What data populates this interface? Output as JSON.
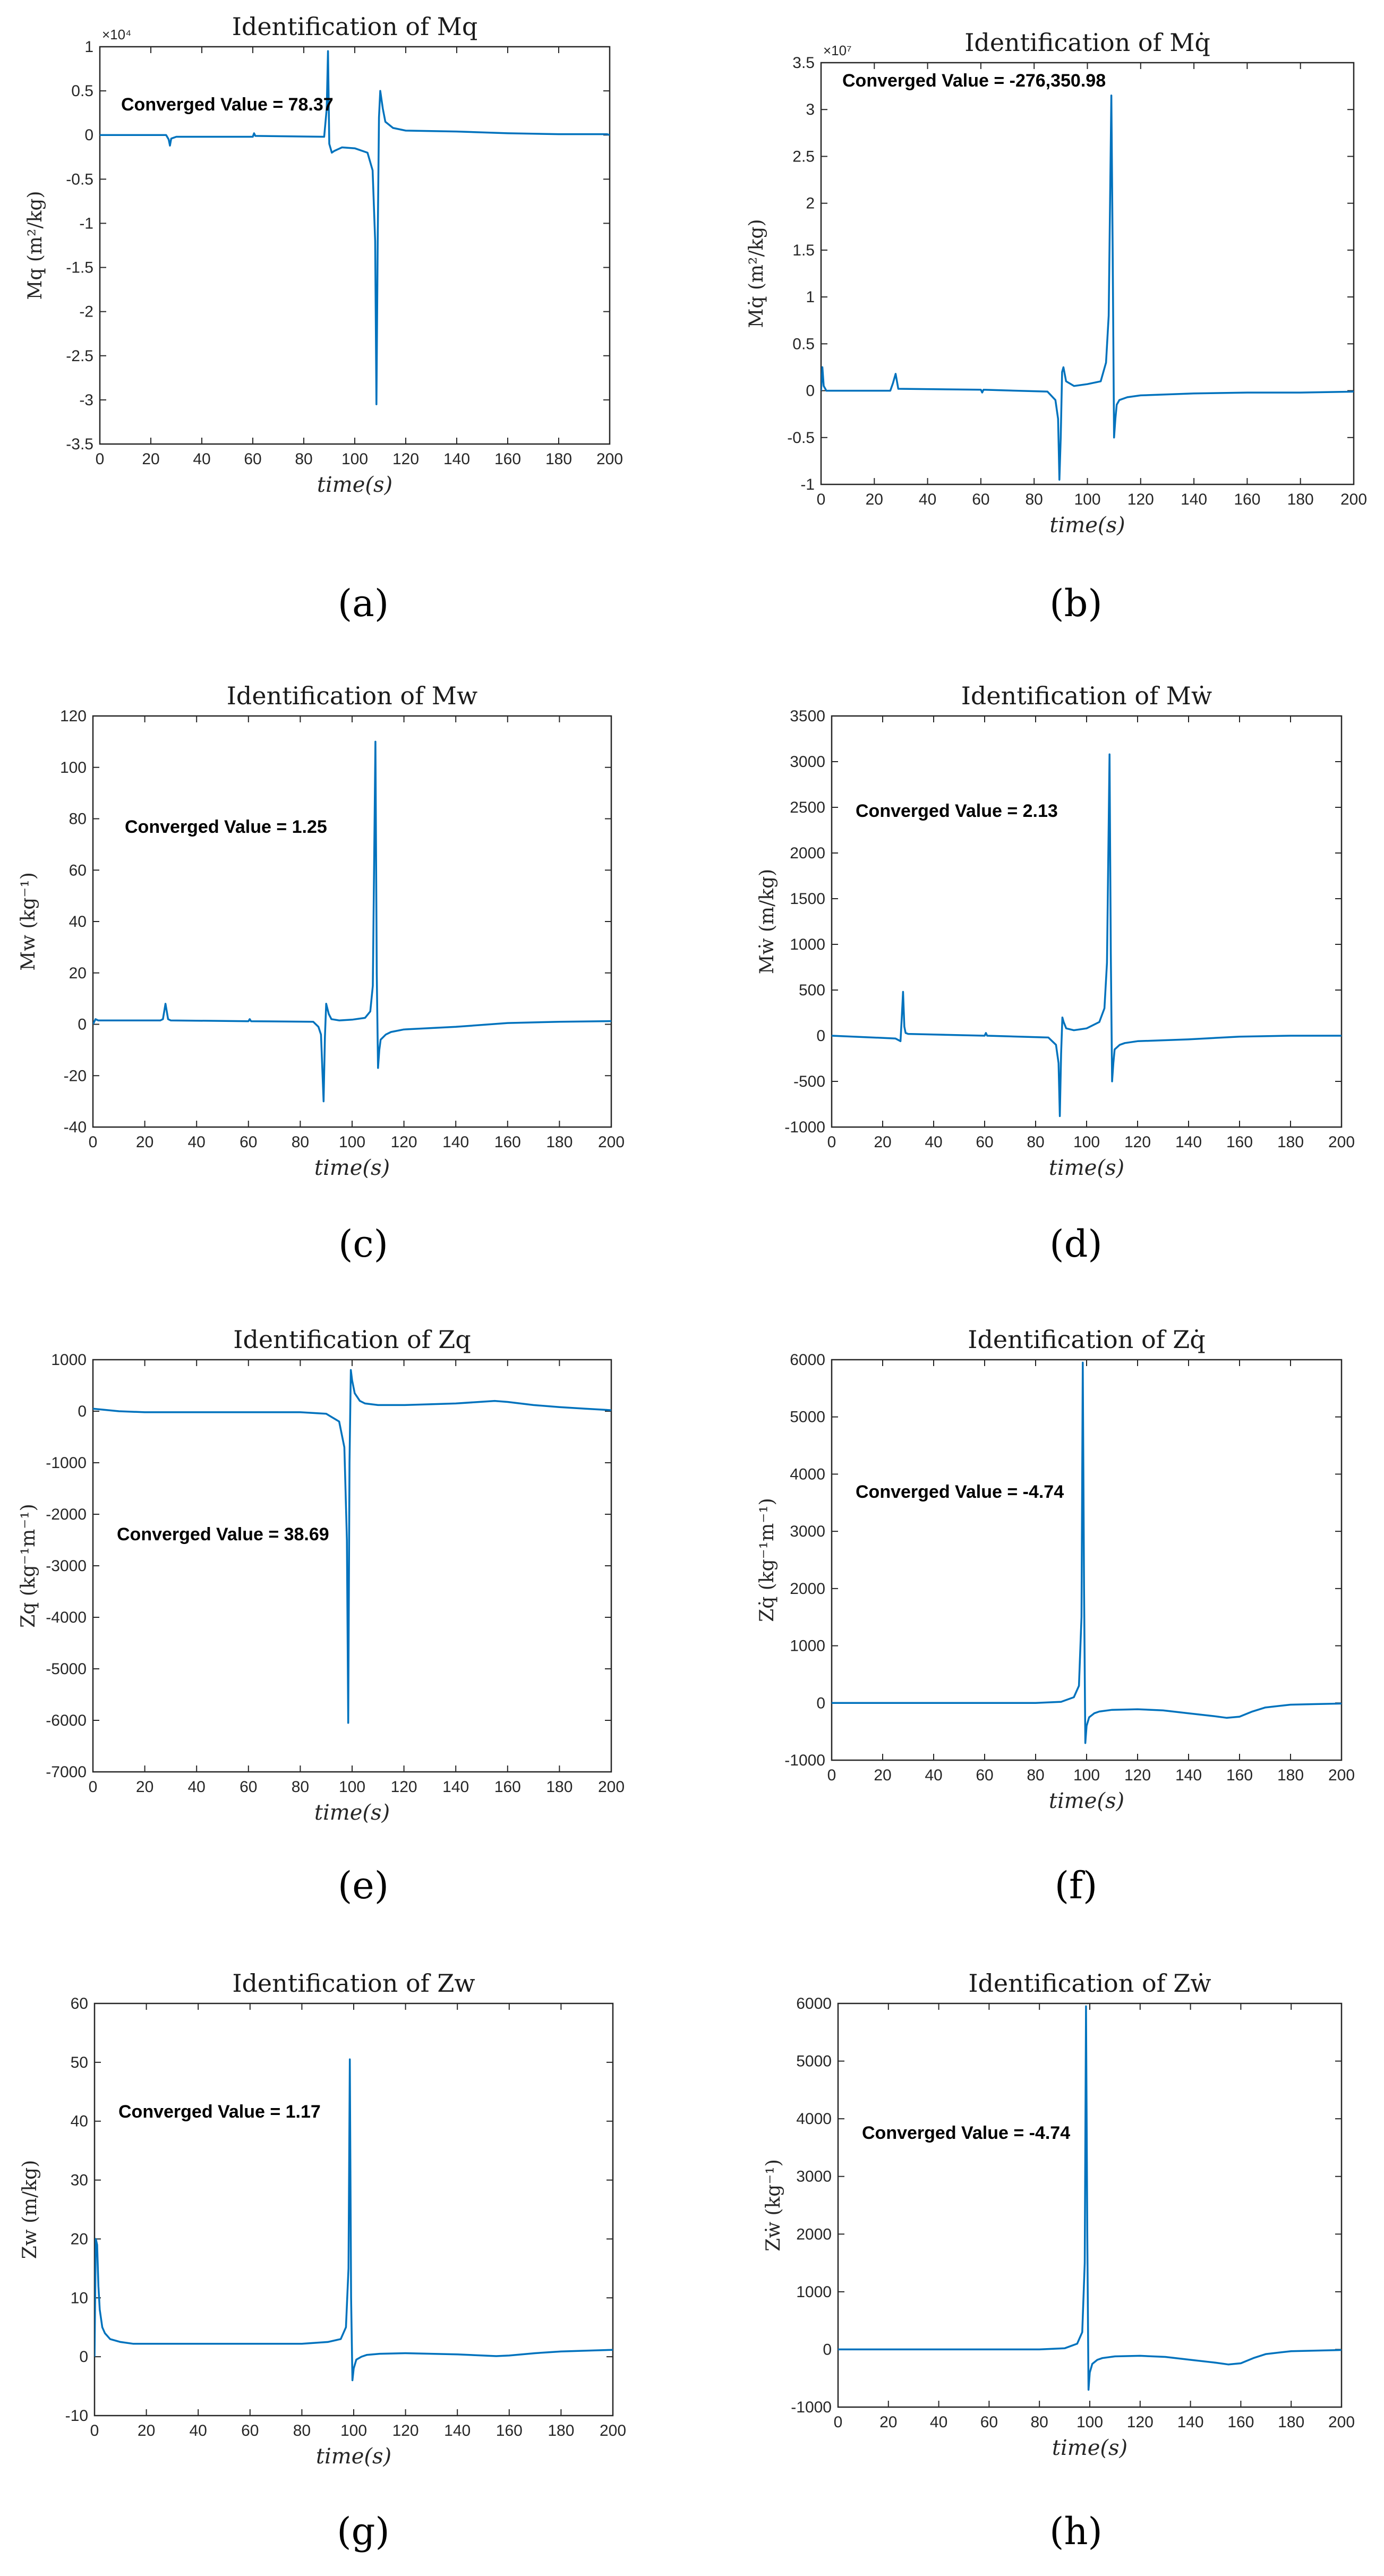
{
  "figure": {
    "series_color": "#0072BD"
  },
  "chart_data": [
    {
      "id": "a",
      "type": "line",
      "subfigure_label": "(a)",
      "title": "Identification of Mq",
      "ylabel": "Mq (m²/kg)",
      "xlabel": "time(s)",
      "y_exponent": "×10⁴",
      "annotation": "Converged Value = 78.37",
      "xlim": [
        0,
        200
      ],
      "ylim": [
        -3.5,
        1
      ],
      "xticks": [
        0,
        20,
        40,
        60,
        80,
        100,
        120,
        140,
        160,
        180,
        200
      ],
      "xtick_labels": [
        "0",
        "20",
        "40",
        "60",
        "80",
        "100",
        "120",
        "140",
        "160",
        "180",
        "200"
      ],
      "yticks": [
        -3.5,
        -3,
        -2.5,
        -2,
        -1.5,
        -1,
        -0.5,
        0,
        0.5,
        1
      ],
      "ytick_labels": [
        "-3.5",
        "-3",
        "-2.5",
        "-2",
        "-1.5",
        "-1",
        "-0.5",
        "0",
        "0.5",
        "1"
      ],
      "series": [
        {
          "name": "Mq",
          "x": [
            0,
            26,
            27,
            27.5,
            28,
            29,
            30,
            60,
            60.5,
            61,
            88,
            89,
            89.5,
            90,
            91,
            92,
            95,
            100,
            105,
            107,
            108,
            108.5,
            109,
            109.5,
            110,
            111,
            112,
            115,
            120,
            140,
            160,
            180,
            199,
            200
          ],
          "y": [
            0,
            0,
            -0.05,
            -0.12,
            -0.04,
            -0.03,
            -0.02,
            -0.02,
            0.02,
            -0.01,
            -0.02,
            0.3,
            0.95,
            -0.1,
            -0.2,
            -0.18,
            -0.14,
            -0.15,
            -0.2,
            -0.4,
            -1.2,
            -3.05,
            -1.2,
            0.2,
            0.5,
            0.3,
            0.15,
            0.08,
            0.05,
            0.04,
            0.02,
            0.01,
            0.01,
            0
          ]
        }
      ]
    },
    {
      "id": "b",
      "type": "line",
      "subfigure_label": "(b)",
      "title": "Identification of Mq̇",
      "ylabel": "Mq̇ (m²/kg)",
      "xlabel": "time(s)",
      "y_exponent": "×10⁷",
      "annotation": "Converged Value = -276,350.98",
      "xlim": [
        0,
        200
      ],
      "ylim": [
        -1,
        3.5
      ],
      "xticks": [
        0,
        20,
        40,
        60,
        80,
        100,
        120,
        140,
        160,
        180,
        200
      ],
      "xtick_labels": [
        "0",
        "20",
        "40",
        "60",
        "80",
        "100",
        "120",
        "140",
        "160",
        "180",
        "200"
      ],
      "yticks": [
        -1,
        -0.5,
        0,
        0.5,
        1,
        1.5,
        2,
        2.5,
        3,
        3.5
      ],
      "ytick_labels": [
        "-1",
        "-0.5",
        "0",
        "0.5",
        "1",
        "1.5",
        "2",
        "2.5",
        "3",
        "3.5"
      ],
      "series": [
        {
          "name": "Mq̇",
          "x": [
            0,
            0.5,
            1,
            2,
            26,
            27,
            28,
            29,
            60,
            60.5,
            61,
            85,
            88,
            89,
            89.5,
            90,
            90.5,
            91,
            92,
            95,
            100,
            105,
            107,
            108,
            109,
            109.5,
            110,
            110.5,
            111,
            112,
            115,
            120,
            140,
            160,
            180,
            200
          ],
          "y": [
            0,
            0.25,
            0.05,
            0,
            0,
            0.08,
            0.18,
            0.02,
            0.01,
            -0.02,
            0.01,
            -0.01,
            -0.1,
            -0.3,
            -0.95,
            -0.5,
            0.2,
            0.25,
            0.1,
            0.05,
            0.07,
            0.1,
            0.3,
            0.8,
            3.15,
            1.5,
            -0.5,
            -0.3,
            -0.15,
            -0.1,
            -0.07,
            -0.05,
            -0.03,
            -0.02,
            -0.02,
            -0.01
          ]
        }
      ]
    },
    {
      "id": "c",
      "type": "line",
      "subfigure_label": "(c)",
      "title": "Identification of Mw",
      "ylabel": "Mw (kg⁻¹)",
      "xlabel": "time(s)",
      "annotation": "Converged Value = 1.25",
      "xlim": [
        0,
        200
      ],
      "ylim": [
        -40,
        120
      ],
      "xticks": [
        0,
        20,
        40,
        60,
        80,
        100,
        120,
        140,
        160,
        180,
        200
      ],
      "xtick_labels": [
        "0",
        "20",
        "40",
        "60",
        "80",
        "100",
        "120",
        "140",
        "160",
        "180",
        "200"
      ],
      "yticks": [
        -40,
        -20,
        0,
        20,
        40,
        60,
        80,
        100,
        120
      ],
      "ytick_labels": [
        "-40",
        "-20",
        "0",
        "20",
        "40",
        "60",
        "80",
        "100",
        "120"
      ],
      "series": [
        {
          "name": "Mw",
          "x": [
            0,
            1,
            2,
            26,
            27,
            28,
            29,
            30,
            60,
            60.5,
            61,
            85,
            87,
            88,
            89,
            89.5,
            90,
            91,
            92,
            95,
            100,
            105,
            107,
            108,
            109,
            109.5,
            110,
            110.5,
            111,
            113,
            115,
            120,
            140,
            160,
            180,
            200
          ],
          "y": [
            0,
            2,
            1.5,
            1.5,
            2,
            8,
            2,
            1.5,
            1.2,
            2,
            1.2,
            1,
            -1,
            -4,
            -30,
            -5,
            8,
            4,
            2,
            1.5,
            1.8,
            2.5,
            5,
            15,
            110,
            20,
            -17,
            -10,
            -6,
            -4,
            -3,
            -2,
            -1,
            0.5,
            1,
            1.25
          ]
        }
      ]
    },
    {
      "id": "d",
      "type": "line",
      "subfigure_label": "(d)",
      "title": "Identification of Mẇ",
      "ylabel": "Mẇ (m/kg)",
      "xlabel": "time(s)",
      "annotation": "Converged Value = 2.13",
      "xlim": [
        0,
        200
      ],
      "ylim": [
        -1000,
        3500
      ],
      "xticks": [
        0,
        20,
        40,
        60,
        80,
        100,
        120,
        140,
        160,
        180,
        200
      ],
      "xtick_labels": [
        "0",
        "20",
        "40",
        "60",
        "80",
        "100",
        "120",
        "140",
        "160",
        "180",
        "200"
      ],
      "yticks": [
        -1000,
        -500,
        0,
        500,
        1000,
        1500,
        2000,
        2500,
        3000,
        3500
      ],
      "ytick_labels": [
        "-1000",
        "-500",
        "0",
        "500",
        "1000",
        "1500",
        "2000",
        "2500",
        "3000",
        "3500"
      ],
      "series": [
        {
          "name": "Mẇ",
          "x": [
            0,
            25,
            27,
            27.5,
            28,
            28.5,
            29,
            30,
            60,
            60.5,
            61,
            85,
            88,
            89,
            89.5,
            90,
            90.5,
            91,
            92,
            95,
            100,
            105,
            107,
            108,
            109,
            109.5,
            110,
            110.5,
            111,
            113,
            115,
            120,
            140,
            160,
            180,
            200
          ],
          "y": [
            0,
            -30,
            -60,
            200,
            480,
            100,
            30,
            20,
            0,
            30,
            0,
            -20,
            -100,
            -300,
            -880,
            -200,
            200,
            150,
            80,
            60,
            80,
            150,
            300,
            800,
            3080,
            900,
            -500,
            -300,
            -150,
            -100,
            -80,
            -60,
            -40,
            -10,
            0,
            0
          ]
        }
      ]
    },
    {
      "id": "e",
      "type": "line",
      "subfigure_label": "(e)",
      "title": "Identification of Zq",
      "ylabel": "Zq (kg⁻¹m⁻¹)",
      "xlabel": "time(s)",
      "annotation": "Converged Value = 38.69",
      "xlim": [
        0,
        200
      ],
      "ylim": [
        -7000,
        1000
      ],
      "xticks": [
        0,
        20,
        40,
        60,
        80,
        100,
        120,
        140,
        160,
        180,
        200
      ],
      "xtick_labels": [
        "0",
        "20",
        "40",
        "60",
        "80",
        "100",
        "120",
        "140",
        "160",
        "180",
        "200"
      ],
      "yticks": [
        -7000,
        -6000,
        -5000,
        -4000,
        -3000,
        -2000,
        -1000,
        0,
        1000
      ],
      "ytick_labels": [
        "-7000",
        "-6000",
        "-5000",
        "-4000",
        "-3000",
        "-2000",
        "-1000",
        "0",
        "1000"
      ],
      "series": [
        {
          "name": "Zq",
          "x": [
            0,
            10,
            20,
            40,
            60,
            80,
            90,
            95,
            97,
            98,
            98.5,
            99,
            99.5,
            100,
            101,
            103,
            105,
            110,
            120,
            140,
            155,
            160,
            170,
            180,
            190,
            200
          ],
          "y": [
            50,
            0,
            -20,
            -20,
            -20,
            -20,
            -50,
            -200,
            -700,
            -2500,
            -6050,
            -1000,
            800,
            600,
            350,
            200,
            150,
            120,
            120,
            150,
            200,
            180,
            120,
            80,
            50,
            20
          ]
        }
      ]
    },
    {
      "id": "f",
      "type": "line",
      "subfigure_label": "(f)",
      "title": "Identification of Zq̇",
      "ylabel": "Zq̇ (kg⁻¹m⁻¹)",
      "xlabel": "time(s)",
      "annotation": "Converged Value = -4.74",
      "xlim": [
        0,
        200
      ],
      "ylim": [
        -1000,
        6000
      ],
      "xticks": [
        0,
        20,
        40,
        60,
        80,
        100,
        120,
        140,
        160,
        180,
        200
      ],
      "xtick_labels": [
        "0",
        "20",
        "40",
        "60",
        "80",
        "100",
        "120",
        "140",
        "160",
        "180",
        "200"
      ],
      "yticks": [
        -1000,
        0,
        1000,
        2000,
        3000,
        4000,
        5000,
        6000
      ],
      "ytick_labels": [
        "-1000",
        "0",
        "1000",
        "2000",
        "3000",
        "4000",
        "5000",
        "6000"
      ],
      "series": [
        {
          "name": "Zq̇",
          "x": [
            0,
            20,
            40,
            60,
            80,
            90,
            95,
            97,
            98,
            98.5,
            99,
            99.5,
            100,
            101,
            103,
            105,
            110,
            120,
            130,
            140,
            150,
            155,
            160,
            165,
            170,
            180,
            190,
            200
          ],
          "y": [
            0,
            0,
            0,
            0,
            0,
            20,
            100,
            300,
            1500,
            5950,
            2000,
            -700,
            -400,
            -250,
            -180,
            -150,
            -120,
            -110,
            -130,
            -180,
            -230,
            -260,
            -240,
            -150,
            -80,
            -30,
            -20,
            -10
          ]
        }
      ]
    },
    {
      "id": "g",
      "type": "line",
      "subfigure_label": "(g)",
      "title": "Identification of Zw",
      "ylabel": "Zw (m/kg)",
      "xlabel": "time(s)",
      "annotation": "Converged Value = 1.17",
      "xlim": [
        0,
        200
      ],
      "ylim": [
        -10,
        60
      ],
      "xticks": [
        0,
        20,
        40,
        60,
        80,
        100,
        120,
        140,
        160,
        180,
        200
      ],
      "xtick_labels": [
        "0",
        "20",
        "40",
        "60",
        "80",
        "100",
        "120",
        "140",
        "160",
        "180",
        "200"
      ],
      "yticks": [
        -10,
        0,
        10,
        20,
        30,
        40,
        50,
        60
      ],
      "ytick_labels": [
        "-10",
        "0",
        "10",
        "20",
        "30",
        "40",
        "50",
        "60"
      ],
      "series": [
        {
          "name": "Zw",
          "x": [
            0,
            0.5,
            1,
            1.5,
            2,
            3,
            4,
            6,
            10,
            15,
            20,
            40,
            60,
            80,
            90,
            95,
            97,
            98,
            98.5,
            99,
            99.5,
            100,
            101,
            103,
            105,
            110,
            120,
            140,
            155,
            160,
            170,
            180,
            200
          ],
          "y": [
            0,
            20,
            19,
            12,
            8,
            5,
            4,
            3,
            2.5,
            2.2,
            2.2,
            2.2,
            2.2,
            2.2,
            2.5,
            3,
            5,
            15,
            50.5,
            10,
            -4,
            -2,
            -0.5,
            0,
            0.3,
            0.5,
            0.6,
            0.4,
            0.1,
            0.2,
            0.6,
            0.9,
            1.17
          ]
        }
      ]
    },
    {
      "id": "h",
      "type": "line",
      "subfigure_label": "(h)",
      "title": "Identification of Zẇ",
      "ylabel": "Zẇ (kg⁻¹)",
      "xlabel": "time(s)",
      "annotation": "Converged Value = -4.74",
      "xlim": [
        0,
        200
      ],
      "ylim": [
        -1000,
        6000
      ],
      "xticks": [
        0,
        20,
        40,
        60,
        80,
        100,
        120,
        140,
        160,
        180,
        200
      ],
      "xtick_labels": [
        "0",
        "20",
        "40",
        "60",
        "80",
        "100",
        "120",
        "140",
        "160",
        "180",
        "200"
      ],
      "yticks": [
        -1000,
        0,
        1000,
        2000,
        3000,
        4000,
        5000,
        6000
      ],
      "ytick_labels": [
        "-1000",
        "0",
        "1000",
        "2000",
        "3000",
        "4000",
        "5000",
        "6000"
      ],
      "series": [
        {
          "name": "Zẇ",
          "x": [
            0,
            20,
            40,
            60,
            80,
            90,
            95,
            97,
            98,
            98.5,
            99,
            99.5,
            100,
            101,
            103,
            105,
            110,
            120,
            130,
            140,
            150,
            155,
            160,
            165,
            170,
            180,
            190,
            200
          ],
          "y": [
            0,
            0,
            0,
            0,
            0,
            20,
            100,
            300,
            1500,
            5950,
            2000,
            -700,
            -400,
            -250,
            -180,
            -150,
            -120,
            -110,
            -130,
            -180,
            -230,
            -260,
            -240,
            -150,
            -80,
            -30,
            -20,
            -10
          ]
        }
      ]
    }
  ]
}
